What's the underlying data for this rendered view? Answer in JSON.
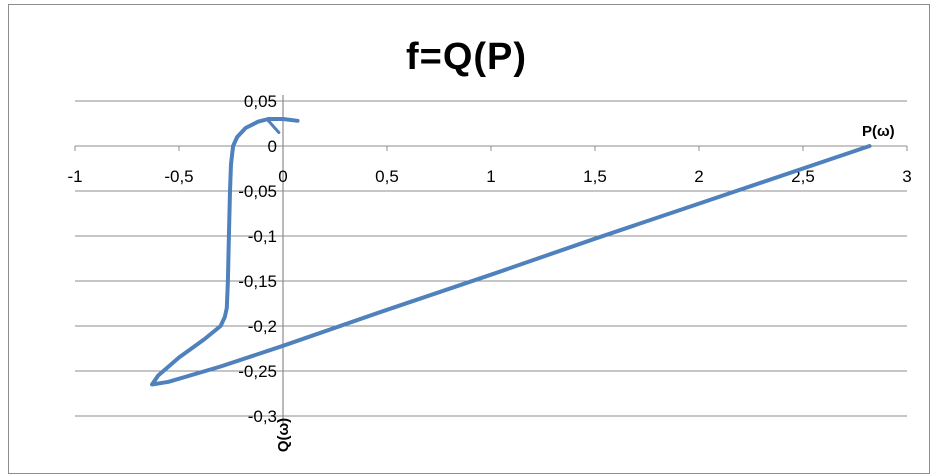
{
  "chart_data": {
    "type": "scatter",
    "title": "f=Q(P)",
    "xlabel": "P(ω)",
    "ylabel": "Q(ω)",
    "xlim": [
      -1,
      3
    ],
    "ylim": [
      -0.3,
      0.05
    ],
    "x_ticks": [
      "-1",
      "-0,5",
      "0",
      "0,5",
      "1",
      "1,5",
      "2",
      "2,5",
      "3"
    ],
    "y_ticks": [
      "0,05",
      "0",
      "-0,05",
      "-0,1",
      "-0,15",
      "-0,2",
      "-0,25",
      "-0,3"
    ],
    "x_tick_values": [
      -1,
      -0.5,
      0,
      0.5,
      1,
      1.5,
      2,
      2.5,
      3
    ],
    "y_tick_values": [
      0.05,
      0,
      -0.05,
      -0.1,
      -0.15,
      -0.2,
      -0.25,
      -0.3
    ],
    "grid": true,
    "line_color": "#4f81bd",
    "series": [
      {
        "x": [
          0.07,
          0.0,
          -0.07,
          -0.12,
          -0.18,
          -0.22,
          -0.24,
          -0.25,
          -0.255,
          -0.26,
          -0.265,
          -0.27,
          -0.28,
          -0.3,
          -0.38,
          -0.5,
          -0.6,
          -0.63,
          -0.55,
          -0.3,
          0.0,
          0.5,
          1.0,
          1.5,
          2.0,
          2.5,
          2.82
        ],
        "y": [
          0.028,
          0.03,
          0.03,
          0.027,
          0.02,
          0.01,
          0.0,
          -0.02,
          -0.05,
          -0.1,
          -0.15,
          -0.18,
          -0.19,
          -0.2,
          -0.215,
          -0.235,
          -0.255,
          -0.265,
          -0.262,
          -0.245,
          -0.222,
          -0.182,
          -0.143,
          -0.103,
          -0.064,
          -0.025,
          0.0
        ]
      }
    ]
  }
}
